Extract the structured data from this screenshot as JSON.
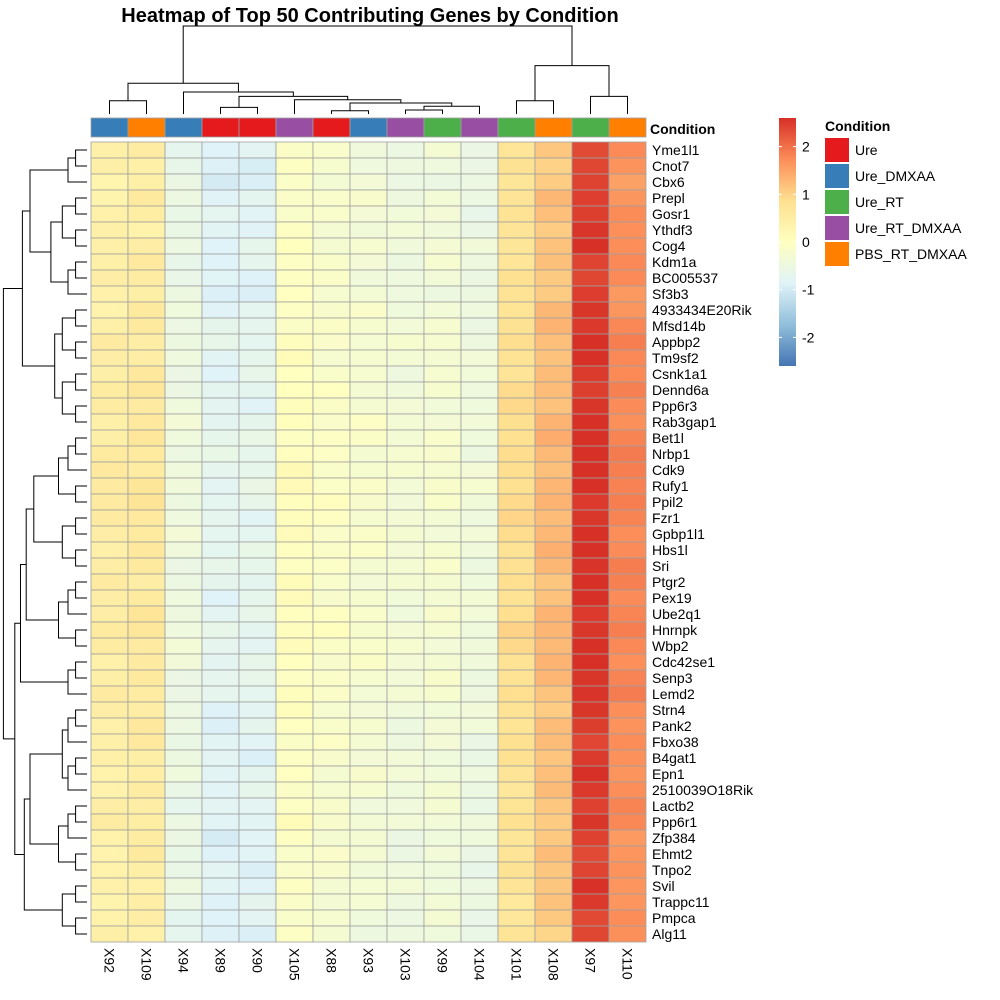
{
  "chart_data": {
    "type": "heatmap",
    "title": "Heatmap of Top 50 Contributing Genes by Condition",
    "columns": [
      "X92",
      "X109",
      "X94",
      "X89",
      "X90",
      "X105",
      "X88",
      "X93",
      "X103",
      "X99",
      "X104",
      "X101",
      "X108",
      "X97",
      "X110"
    ],
    "column_conditions": [
      "Ure_DMXAA",
      "PBS_RT_DMXAA",
      "Ure_DMXAA",
      "Ure",
      "Ure",
      "Ure_RT_DMXAA",
      "Ure",
      "Ure_DMXAA",
      "Ure_RT_DMXAA",
      "Ure_RT",
      "Ure_RT_DMXAA",
      "Ure_RT",
      "PBS_RT_DMXAA",
      "Ure_RT",
      "PBS_RT_DMXAA"
    ],
    "annotation_label": "Condition",
    "legend": {
      "title": "Condition",
      "entries": [
        {
          "name": "Ure",
          "color": "#E41A1C"
        },
        {
          "name": "Ure_DMXAA",
          "color": "#377EB8"
        },
        {
          "name": "Ure_RT",
          "color": "#4DAF4A"
        },
        {
          "name": "Ure_RT_DMXAA",
          "color": "#984EA3"
        },
        {
          "name": "PBS_RT_DMXAA",
          "color": "#FF7F00"
        }
      ]
    },
    "colorbar": {
      "range": [
        -2.6,
        2.6
      ],
      "ticks": [
        2,
        1,
        0,
        -1,
        -2
      ],
      "tick_labels": [
        "2",
        "1",
        "0",
        "-1",
        "-2"
      ],
      "colors": [
        "#4575B4",
        "#91BFDB",
        "#E0F3F8",
        "#FFFFBF",
        "#FEE090",
        "#FC8D59",
        "#D73027"
      ]
    },
    "rows": [
      "Yme1l1",
      "Cnot7",
      "Cbx6",
      "Prepl",
      "Gosr1",
      "Ythdf3",
      "Cog4",
      "Kdm1a",
      "BC005537",
      "Sf3b3",
      "4933434E20Rik",
      "Mfsd14b",
      "Appbp2",
      "Tm9sf2",
      "Csnk1a1",
      "Dennd6a",
      "Ppp6r3",
      "Rab3gap1",
      "Bet1l",
      "Nrbp1",
      "Cdk9",
      "Rufy1",
      "Ppil2",
      "Fzr1",
      "Gpbp1l1",
      "Hbs1l",
      "Sri",
      "Ptgr2",
      "Pex19",
      "Ube2q1",
      "Hnrnpk",
      "Wbp2",
      "Cdc42se1",
      "Senp3",
      "Lemd2",
      "Strn4",
      "Pank2",
      "Fbxo38",
      "B4gat1",
      "Epn1",
      "2510039O18Rik",
      "Lactb2",
      "Ppp6r1",
      "Zfp384",
      "Ehmt2",
      "Tnpo2",
      "Svil",
      "Trappc11",
      "Pmpca",
      "Alg11"
    ],
    "column_means": [
      0.42,
      0.52,
      -0.55,
      -0.82,
      -0.78,
      -0.05,
      -0.2,
      -0.3,
      -0.42,
      -0.35,
      -0.5,
      0.78,
      1.18,
      2.5,
      1.72
    ],
    "row_offsets": [
      -0.05,
      -0.08,
      -0.1,
      0.0,
      -0.02,
      -0.04,
      0.02,
      0.0,
      -0.03,
      -0.05,
      0.03,
      0.05,
      0.08,
      0.06,
      0.04,
      0.07,
      0.05,
      0.1,
      0.12,
      0.1,
      0.12,
      0.14,
      0.12,
      0.08,
      0.1,
      0.1,
      0.08,
      0.06,
      0.06,
      0.1,
      0.12,
      0.1,
      0.08,
      0.06,
      0.06,
      0.0,
      0.02,
      0.0,
      -0.02,
      0.02,
      0.0,
      -0.02,
      0.02,
      -0.05,
      -0.04,
      -0.06,
      -0.02,
      -0.04,
      -0.08,
      -0.1
    ]
  }
}
